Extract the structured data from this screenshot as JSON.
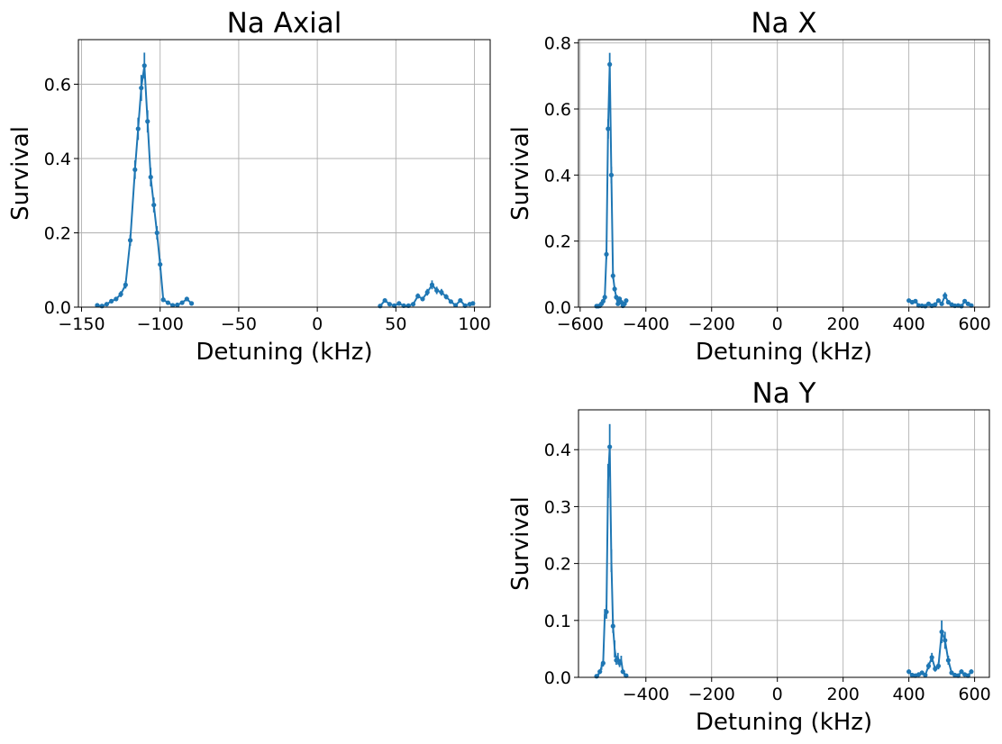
{
  "chart_data": [
    {
      "type": "line",
      "title": "Na Axial",
      "xlabel": "Detuning (kHz)",
      "ylabel": "Survival",
      "xlim": [
        -152,
        110
      ],
      "ylim": [
        0,
        0.72
      ],
      "xticks": [
        -150,
        -100,
        -50,
        0,
        50,
        100
      ],
      "xtick_labels": [
        "−150",
        "−100",
        "−50",
        "0",
        "50",
        "100"
      ],
      "yticks": [
        0.0,
        0.2,
        0.4,
        0.6
      ],
      "ytick_labels": [
        "0.0",
        "0.2",
        "0.4",
        "0.6"
      ],
      "grid": true,
      "color": "#1f77b4",
      "segments": [
        {
          "x": [
            -140,
            -137,
            -134,
            -131,
            -128,
            -125,
            -122,
            -119,
            -116,
            -114,
            -112,
            -110,
            -108,
            -106,
            -104,
            -102,
            -100,
            -98,
            -95,
            -92,
            -89,
            -86,
            -83,
            -80
          ],
          "y": [
            0.005,
            0.003,
            0.008,
            0.016,
            0.022,
            0.035,
            0.06,
            0.18,
            0.37,
            0.48,
            0.59,
            0.65,
            0.5,
            0.35,
            0.275,
            0.2,
            0.115,
            0.02,
            0.012,
            0.005,
            0.006,
            0.012,
            0.022,
            0.01
          ],
          "err": [
            0.004,
            0.003,
            0.004,
            0.005,
            0.006,
            0.008,
            0.01,
            0.015,
            0.025,
            0.03,
            0.035,
            0.035,
            0.03,
            0.025,
            0.02,
            0.018,
            0.015,
            0.006,
            0.005,
            0.003,
            0.004,
            0.005,
            0.006,
            0.004
          ]
        },
        {
          "x": [
            40,
            43,
            46,
            49,
            52,
            55,
            58,
            61,
            64,
            67,
            70,
            73,
            76,
            79,
            82,
            85,
            88,
            91,
            94,
            97,
            99
          ],
          "y": [
            0.003,
            0.018,
            0.008,
            0.004,
            0.01,
            0.004,
            0.004,
            0.008,
            0.03,
            0.022,
            0.04,
            0.06,
            0.045,
            0.04,
            0.028,
            0.015,
            0.005,
            0.018,
            0.004,
            0.008,
            0.01
          ],
          "err": [
            0.003,
            0.005,
            0.004,
            0.003,
            0.004,
            0.003,
            0.003,
            0.004,
            0.007,
            0.006,
            0.009,
            0.012,
            0.01,
            0.009,
            0.007,
            0.005,
            0.003,
            0.005,
            0.003,
            0.004,
            0.004
          ]
        }
      ]
    },
    {
      "type": "line",
      "title": "Na X",
      "xlabel": "Detuning (kHz)",
      "ylabel": "Survival",
      "xlim": [
        -605,
        645
      ],
      "ylim": [
        0,
        0.81
      ],
      "xticks": [
        -600,
        -400,
        -200,
        0,
        200,
        400,
        600
      ],
      "xtick_labels": [
        "−600",
        "−400",
        "−200",
        "0",
        "200",
        "400",
        "600"
      ],
      "yticks": [
        0.0,
        0.2,
        0.4,
        0.6,
        0.8
      ],
      "ytick_labels": [
        "0.0",
        "0.2",
        "0.4",
        "0.6",
        "0.8"
      ],
      "grid": true,
      "color": "#1f77b4",
      "segments": [
        {
          "x": [
            -550,
            -545,
            -540,
            -535,
            -530,
            -525,
            -520,
            -515,
            -510,
            -505,
            -500,
            -495,
            -490,
            -485,
            -480,
            -475,
            -470,
            -465,
            -460
          ],
          "y": [
            0.003,
            0.003,
            0.004,
            0.01,
            0.018,
            0.03,
            0.16,
            0.54,
            0.735,
            0.4,
            0.095,
            0.055,
            0.03,
            0.01,
            0.025,
            0.015,
            0.004,
            0.01,
            0.02
          ],
          "err": [
            0.003,
            0.003,
            0.003,
            0.004,
            0.006,
            0.008,
            0.015,
            0.03,
            0.035,
            0.025,
            0.01,
            0.008,
            0.007,
            0.004,
            0.007,
            0.005,
            0.003,
            0.004,
            0.006
          ]
        },
        {
          "x": [
            400,
            410,
            420,
            430,
            440,
            450,
            460,
            470,
            480,
            490,
            500,
            510,
            520,
            530,
            540,
            550,
            560,
            570,
            580,
            590
          ],
          "y": [
            0.02,
            0.015,
            0.018,
            0.005,
            0.004,
            0.003,
            0.01,
            0.004,
            0.008,
            0.02,
            0.01,
            0.035,
            0.015,
            0.008,
            0.004,
            0.005,
            0.003,
            0.018,
            0.01,
            0.005
          ],
          "err": [
            0.006,
            0.005,
            0.006,
            0.003,
            0.003,
            0.003,
            0.004,
            0.003,
            0.004,
            0.006,
            0.004,
            0.01,
            0.005,
            0.004,
            0.003,
            0.003,
            0.003,
            0.006,
            0.004,
            0.003
          ]
        }
      ]
    },
    {
      "type": "line",
      "title": "Na Y",
      "xlabel": "Detuning (kHz)",
      "ylabel": "Survival",
      "xlim": [
        -605,
        645
      ],
      "ylim": [
        0,
        0.47
      ],
      "xticks": [
        -400,
        -200,
        0,
        200,
        400,
        600
      ],
      "xtick_labels": [
        "−400",
        "−200",
        "0",
        "200",
        "400",
        "600"
      ],
      "yticks": [
        0.0,
        0.1,
        0.2,
        0.3,
        0.4
      ],
      "ytick_labels": [
        "0.0",
        "0.1",
        "0.2",
        "0.3",
        "0.4"
      ],
      "grid": true,
      "color": "#1f77b4",
      "segments": [
        {
          "x": [
            -550,
            -545,
            -540,
            -535,
            -530,
            -525,
            -520,
            -515,
            -510,
            -505,
            -500,
            -495,
            -490,
            -485,
            -480,
            -475,
            -470,
            -465,
            -460
          ],
          "y": [
            0.002,
            0.004,
            0.01,
            0.018,
            0.025,
            0.11,
            0.115,
            0.345,
            0.405,
            0.205,
            0.09,
            0.05,
            0.03,
            0.035,
            0.025,
            0.03,
            0.01,
            0.005,
            0.003
          ],
          "err": [
            0.002,
            0.003,
            0.004,
            0.005,
            0.006,
            0.01,
            0.012,
            0.03,
            0.04,
            0.02,
            0.012,
            0.015,
            0.008,
            0.008,
            0.007,
            0.008,
            0.004,
            0.003,
            0.002
          ],
          "marker_every": 2
        },
        {
          "x": [
            400,
            410,
            420,
            430,
            440,
            450,
            460,
            470,
            480,
            490,
            500,
            510,
            520,
            530,
            540,
            550,
            560,
            570,
            580,
            590
          ],
          "y": [
            0.01,
            0.004,
            0.003,
            0.005,
            0.008,
            0.004,
            0.02,
            0.035,
            0.015,
            0.02,
            0.08,
            0.065,
            0.03,
            0.008,
            0.004,
            0.003,
            0.01,
            0.005,
            0.003,
            0.01
          ],
          "err": [
            0.004,
            0.003,
            0.003,
            0.003,
            0.004,
            0.003,
            0.006,
            0.008,
            0.005,
            0.006,
            0.02,
            0.015,
            0.008,
            0.004,
            0.003,
            0.002,
            0.004,
            0.003,
            0.002,
            0.004
          ],
          "marker_every": 1
        }
      ]
    }
  ]
}
